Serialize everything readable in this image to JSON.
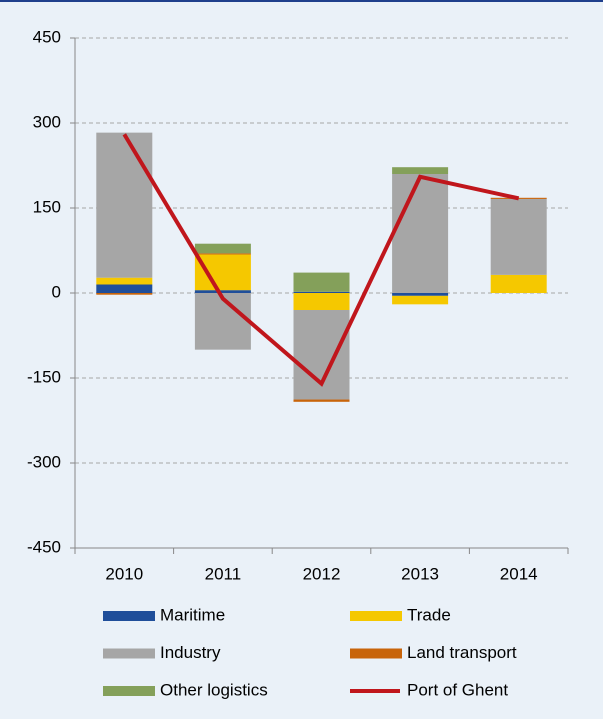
{
  "chart_data": {
    "type": "bar",
    "stacked": true,
    "categories": [
      "2010",
      "2011",
      "2012",
      "2013",
      "2014"
    ],
    "series": [
      {
        "name": "Maritime",
        "color": "#1f4e9a",
        "values": [
          15,
          5,
          2,
          -5,
          0
        ]
      },
      {
        "name": "Trade",
        "color": "#f5c800",
        "values": [
          12,
          63,
          -30,
          -15,
          32
        ]
      },
      {
        "name": "Industry",
        "color": "#a6a6a6",
        "values": [
          256,
          -100,
          -158,
          210,
          134
        ]
      },
      {
        "name": "Land transport",
        "color": "#c8640a",
        "values": [
          -3,
          2,
          -4,
          0,
          2
        ]
      },
      {
        "name": "Other logistics",
        "color": "#84a05a",
        "values": [
          0,
          17,
          34,
          12,
          0
        ]
      },
      {
        "name": "Port of Ghent",
        "type": "line",
        "color": "#c0161c",
        "values": [
          280,
          -10,
          -160,
          205,
          167
        ]
      }
    ],
    "ylim": [
      -450,
      450
    ],
    "yticks": [
      -450,
      -300,
      -150,
      0,
      150,
      300,
      450
    ],
    "grid": true
  }
}
